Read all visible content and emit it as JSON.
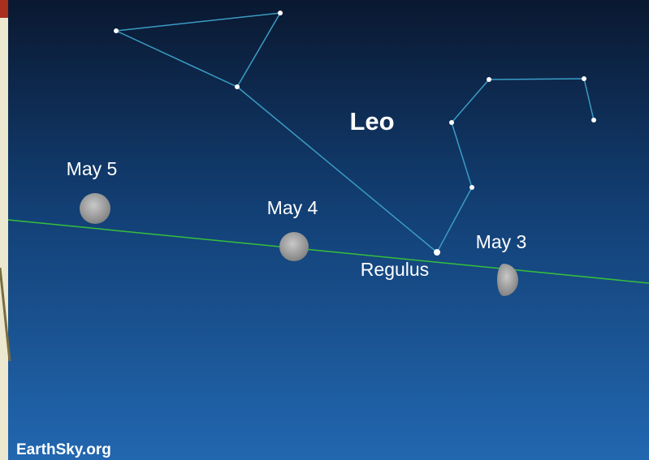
{
  "constellation": {
    "name": "Leo",
    "star": "Regulus"
  },
  "moons": [
    {
      "label": "May 5"
    },
    {
      "label": "May 4"
    },
    {
      "label": "May 3"
    }
  ],
  "credit": "EarthSky.org"
}
